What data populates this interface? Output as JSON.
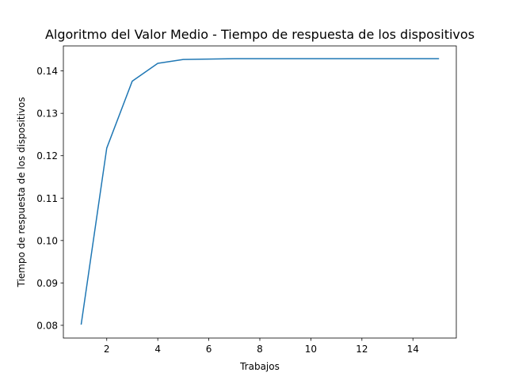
{
  "chart_data": {
    "type": "line",
    "title": "Algoritmo del Valor Medio - Tiempo de respuesta de los dispositivos",
    "xlabel": "Trabajos",
    "ylabel": "Tiempo de respuesta de los dispositivos",
    "xlim": [
      0.3,
      15.7
    ],
    "ylim": [
      0.077,
      0.1459
    ],
    "xticks": [
      2,
      4,
      6,
      8,
      10,
      12,
      14
    ],
    "yticks": [
      0.08,
      0.09,
      0.1,
      0.11,
      0.12,
      0.13,
      0.14
    ],
    "xtick_labels": [
      "2",
      "4",
      "6",
      "8",
      "10",
      "12",
      "14"
    ],
    "ytick_labels": [
      "0.08",
      "0.09",
      "0.10",
      "0.11",
      "0.12",
      "0.13",
      "0.14"
    ],
    "grid": false,
    "line_color": "#1f77b4",
    "series": [
      {
        "x": [
          1,
          2,
          3,
          4,
          5,
          6,
          7,
          8,
          9,
          10,
          11,
          12,
          13,
          14,
          15
        ],
        "values": [
          0.0803,
          0.1218,
          0.1376,
          0.1418,
          0.1427,
          0.1428,
          0.1429,
          0.1429,
          0.1429,
          0.1429,
          0.1429,
          0.1429,
          0.1429,
          0.1429,
          0.1429
        ]
      }
    ]
  }
}
